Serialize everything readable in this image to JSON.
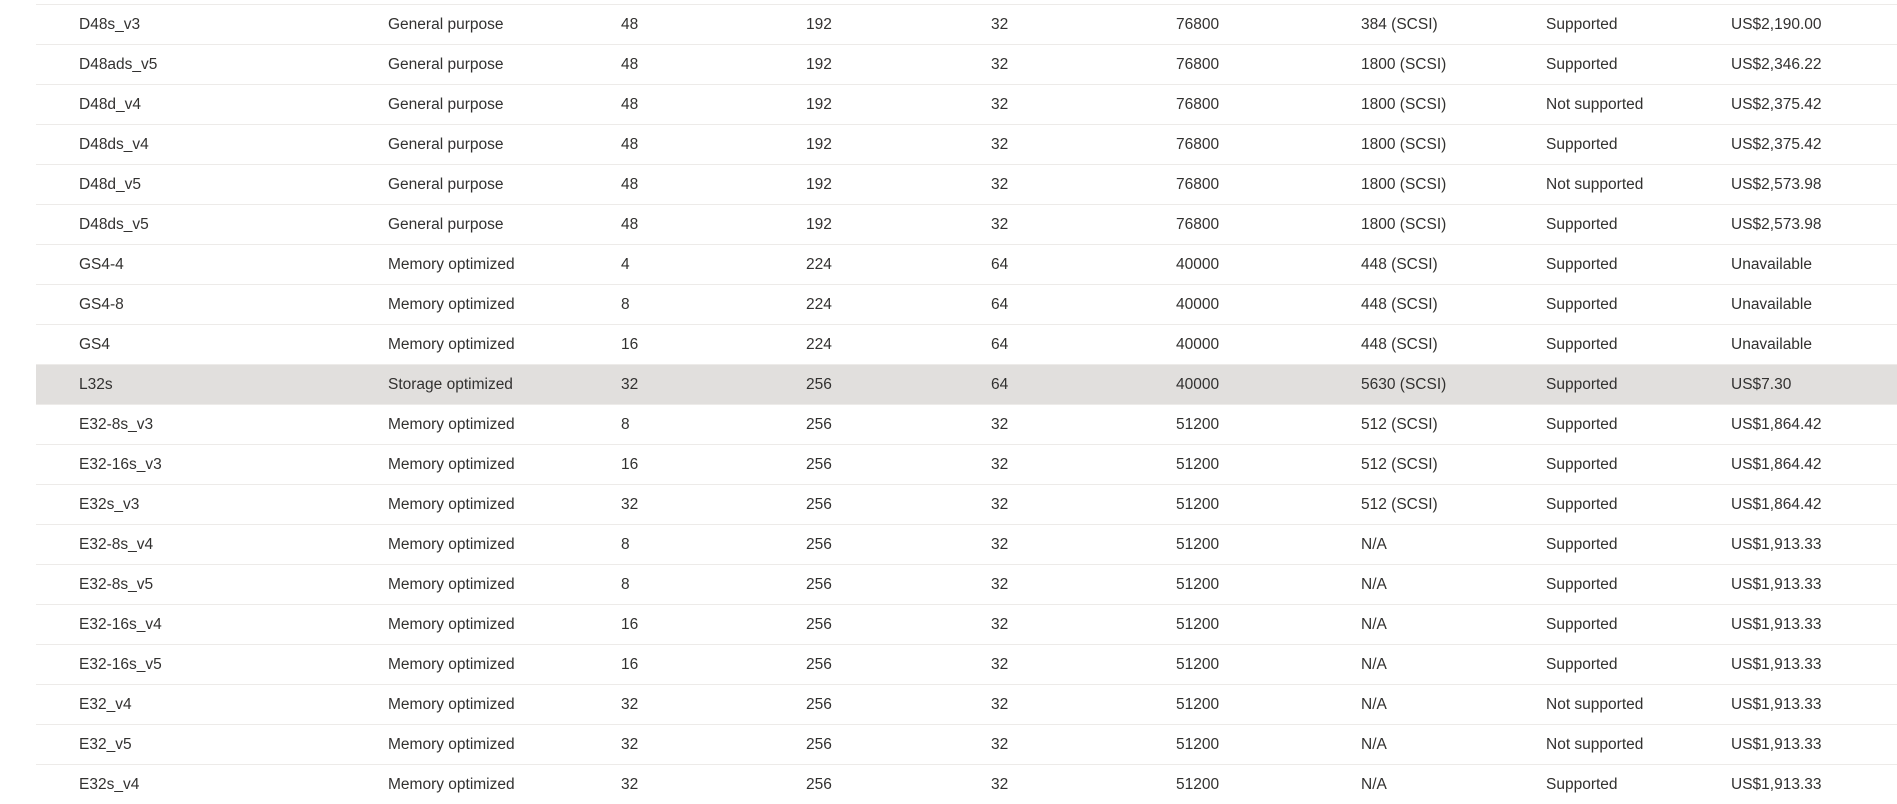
{
  "colors": {
    "text": "#323130",
    "selected_row": "#e1dfdd",
    "divider": "#edebe9"
  },
  "selected_row_index": 9,
  "rows": [
    [
      "D48s_v3",
      "General purpose",
      "48",
      "192",
      "32",
      "76800",
      "384 (SCSI)",
      "Supported",
      "US$2,190.00"
    ],
    [
      "D48ads_v5",
      "General purpose",
      "48",
      "192",
      "32",
      "76800",
      "1800 (SCSI)",
      "Supported",
      "US$2,346.22"
    ],
    [
      "D48d_v4",
      "General purpose",
      "48",
      "192",
      "32",
      "76800",
      "1800 (SCSI)",
      "Not supported",
      "US$2,375.42"
    ],
    [
      "D48ds_v4",
      "General purpose",
      "48",
      "192",
      "32",
      "76800",
      "1800 (SCSI)",
      "Supported",
      "US$2,375.42"
    ],
    [
      "D48d_v5",
      "General purpose",
      "48",
      "192",
      "32",
      "76800",
      "1800 (SCSI)",
      "Not supported",
      "US$2,573.98"
    ],
    [
      "D48ds_v5",
      "General purpose",
      "48",
      "192",
      "32",
      "76800",
      "1800 (SCSI)",
      "Supported",
      "US$2,573.98"
    ],
    [
      "GS4-4",
      "Memory optimized",
      "4",
      "224",
      "64",
      "40000",
      "448 (SCSI)",
      "Supported",
      "Unavailable"
    ],
    [
      "GS4-8",
      "Memory optimized",
      "8",
      "224",
      "64",
      "40000",
      "448 (SCSI)",
      "Supported",
      "Unavailable"
    ],
    [
      "GS4",
      "Memory optimized",
      "16",
      "224",
      "64",
      "40000",
      "448 (SCSI)",
      "Supported",
      "Unavailable"
    ],
    [
      "L32s",
      "Storage optimized",
      "32",
      "256",
      "64",
      "40000",
      "5630 (SCSI)",
      "Supported",
      "US$7.30"
    ],
    [
      "E32-8s_v3",
      "Memory optimized",
      "8",
      "256",
      "32",
      "51200",
      "512 (SCSI)",
      "Supported",
      "US$1,864.42"
    ],
    [
      "E32-16s_v3",
      "Memory optimized",
      "16",
      "256",
      "32",
      "51200",
      "512 (SCSI)",
      "Supported",
      "US$1,864.42"
    ],
    [
      "E32s_v3",
      "Memory optimized",
      "32",
      "256",
      "32",
      "51200",
      "512 (SCSI)",
      "Supported",
      "US$1,864.42"
    ],
    [
      "E32-8s_v4",
      "Memory optimized",
      "8",
      "256",
      "32",
      "51200",
      "N/A",
      "Supported",
      "US$1,913.33"
    ],
    [
      "E32-8s_v5",
      "Memory optimized",
      "8",
      "256",
      "32",
      "51200",
      "N/A",
      "Supported",
      "US$1,913.33"
    ],
    [
      "E32-16s_v4",
      "Memory optimized",
      "16",
      "256",
      "32",
      "51200",
      "N/A",
      "Supported",
      "US$1,913.33"
    ],
    [
      "E32-16s_v5",
      "Memory optimized",
      "16",
      "256",
      "32",
      "51200",
      "N/A",
      "Supported",
      "US$1,913.33"
    ],
    [
      "E32_v4",
      "Memory optimized",
      "32",
      "256",
      "32",
      "51200",
      "N/A",
      "Not supported",
      "US$1,913.33"
    ],
    [
      "E32_v5",
      "Memory optimized",
      "32",
      "256",
      "32",
      "51200",
      "N/A",
      "Not supported",
      "US$1,913.33"
    ],
    [
      "E32s_v4",
      "Memory optimized",
      "32",
      "256",
      "32",
      "51200",
      "N/A",
      "Supported",
      "US$1,913.33"
    ]
  ]
}
